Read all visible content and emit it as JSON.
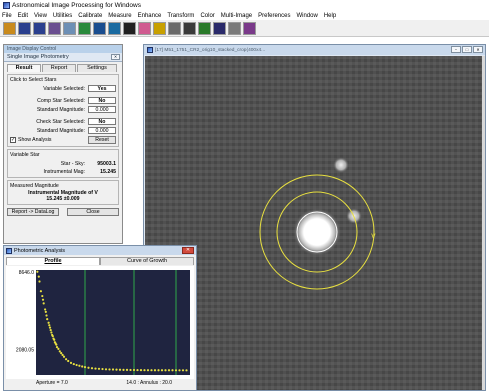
{
  "window": {
    "title": "Astronomical Image Processing for Windows"
  },
  "menu": [
    "File",
    "Edit",
    "View",
    "Utilities",
    "Calibrate",
    "Measure",
    "Enhance",
    "Transform",
    "Color",
    "Multi-Image",
    "Preferences",
    "Window",
    "Help"
  ],
  "toolbar": {
    "icons": [
      "open-icon",
      "save-icon",
      "save-as-icon",
      "print-icon",
      "histogram-icon",
      "stretch-icon",
      "zoom-icon",
      "display-icon",
      "palette-icon",
      "grid-icon",
      "color-icon",
      "rotate-icon",
      "flip-icon",
      "measure-icon",
      "bin-icon",
      "layers-icon",
      "clear-icon"
    ],
    "colors": [
      "#c98a1c",
      "#2a3f8e",
      "#2a3f8e",
      "#6a4e90",
      "#6d8fb5",
      "#2a8a3c",
      "#1a4d8f",
      "#1a6aa0",
      "#202020",
      "#d05a90",
      "#c8a000",
      "#6a6a6a",
      "#3a3a3a",
      "#2a7a2a",
      "#2a2a6a",
      "#7a7a7a",
      "#7a3a8a"
    ]
  },
  "control_panel": {
    "outer_title": "Image Display Control",
    "inner_title": "Single Image Photometry",
    "close_label": "✕",
    "tabs": [
      "Result",
      "Report",
      "Settings"
    ],
    "click_label": "Click to Select Stars",
    "variable_label": "Variable Selected:",
    "variable_value": "Yes",
    "comp_label": "Comp Star Selected:",
    "comp_value": "No",
    "std_mag_label": "Standard Magnitude:",
    "comp_std_mag": "0.000",
    "check_label": "Check Star Selected:",
    "check_value": "No",
    "check_std_mag": "0.000",
    "show_analysis_label": "Show Analysis",
    "show_analysis_checked": "✓",
    "reset_label": "Reset",
    "variable_star_label": "Variable Star",
    "star_sky_label": "Star - Sky:",
    "star_sky_value": "95003.1",
    "inst_mag_label": "Instrumental Mag:",
    "inst_mag_value": "15.245",
    "measured_label": "Measured Magnitude",
    "measured_line1": "Instrumental Magnitude of V",
    "measured_line2": "15.245 ±0.009",
    "report_button": "Report -> DataLog",
    "close_button": "Close"
  },
  "image_window": {
    "title": "[17] M51_1751_CR2_orig10_stacked_crop(400x4...",
    "controls": [
      "−",
      "□",
      "✕"
    ]
  },
  "analysis": {
    "title": "Photometric Analysis",
    "close_label": "✕",
    "tabs": [
      "Profile",
      "Curve of Growth"
    ],
    "y_top": "8646.0",
    "y_mid": "2080.05",
    "aperture_label": "Aperture = 7.0",
    "annulus_label": "14.0 : Annulus : 20.0"
  },
  "chart_data": {
    "type": "scatter",
    "title": "",
    "xlabel": "",
    "ylabel": "",
    "ylim": [
      0,
      8646.0
    ],
    "xlim": [
      0,
      22
    ],
    "reference_lines": [
      7.0,
      14.0,
      20.0
    ],
    "ytick_labels": [
      "8646.0",
      "2080.05"
    ],
    "series": [
      {
        "x": [
          0.2,
          0.4,
          0.5,
          0.7,
          0.9,
          1.0,
          1.1,
          1.3,
          1.4,
          1.5,
          1.6,
          1.8,
          1.9,
          2.0,
          2.1,
          2.2,
          2.3,
          2.4,
          2.5,
          2.6,
          2.7,
          2.8,
          2.9,
          3.0,
          3.2,
          3.4,
          3.6,
          3.8,
          4.0,
          4.3,
          4.6,
          5.0,
          5.4,
          5.8,
          6.2,
          6.6,
          7.0,
          7.5,
          8.0,
          8.5,
          9.0,
          9.5,
          10.0,
          10.5,
          11.0,
          11.5,
          12.0,
          12.5,
          13.0,
          13.5,
          14.0,
          14.5,
          15.0,
          15.5,
          16.0,
          16.5,
          17.0,
          17.5,
          18.0,
          18.5,
          19.0,
          19.5,
          20.0,
          20.5,
          21.0,
          21.5
        ],
        "values": [
          8500,
          8100,
          7700,
          6900,
          6500,
          6200,
          5900,
          5400,
          5200,
          4900,
          4600,
          4300,
          4100,
          3900,
          3700,
          3500,
          3300,
          3200,
          3000,
          2900,
          2700,
          2600,
          2500,
          2300,
          2150,
          1950,
          1800,
          1650,
          1500,
          1300,
          1150,
          1000,
          900,
          820,
          760,
          700,
          650,
          600,
          560,
          530,
          510,
          490,
          470,
          460,
          450,
          440,
          430,
          425,
          420,
          415,
          410,
          405,
          400,
          398,
          396,
          395,
          394,
          393,
          392,
          391,
          390,
          389,
          388,
          387,
          386,
          385
        ]
      }
    ]
  }
}
